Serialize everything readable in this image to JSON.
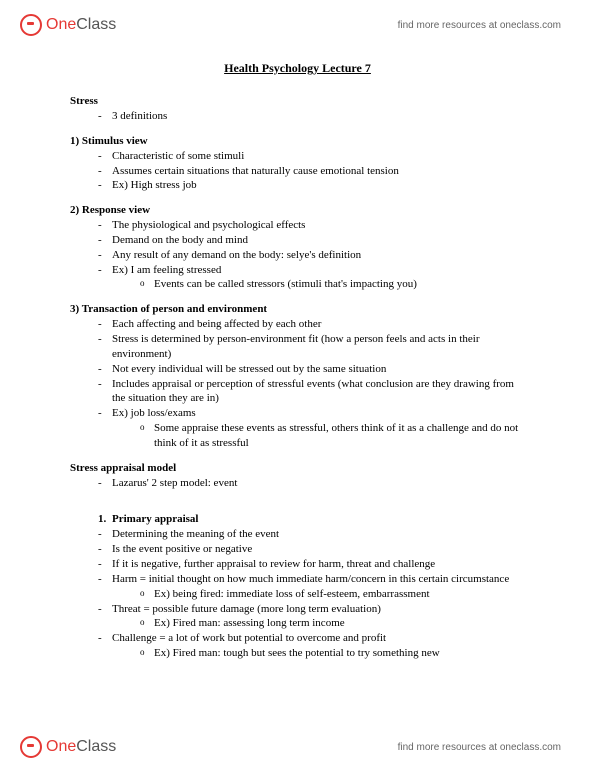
{
  "brand": {
    "one": "One",
    "class": "Class"
  },
  "headerLink": "find more resources at oneclass.com",
  "footerLink": "find more resources at oneclass.com",
  "title": "Health Psychology Lecture 7",
  "s1": {
    "head": "Stress",
    "b1": "3 definitions"
  },
  "s2": {
    "head": "1) Stimulus view",
    "b1": "Characteristic of some stimuli",
    "b2": "Assumes certain situations that naturally cause emotional tension",
    "b3": "Ex) High stress job"
  },
  "s3": {
    "head": "2) Response view",
    "b1": "The physiological and psychological effects",
    "b2": "Demand on the body and mind",
    "b3": "Any result of any demand on the body: selye's definition",
    "b4": "Ex) I am feeling stressed",
    "sub1": "Events can be called stressors (stimuli that's impacting you)"
  },
  "s4": {
    "head": "3) Transaction of person and environment",
    "b1": "Each affecting and being affected by each other",
    "b2": "Stress is determined by person-environment fit (how a person feels and acts in their environment)",
    "b3": "Not every individual will be stressed out by the same situation",
    "b4": "Includes appraisal or perception of stressful events (what conclusion are they drawing from the situation they are in)",
    "b5": "Ex) job loss/exams",
    "sub1": "Some appraise these events as stressful, others think of it as a challenge and do not think of it as stressful"
  },
  "s5": {
    "head": "Stress appraisal model",
    "b1": "Lazarus' 2 step model: event"
  },
  "s6": {
    "num": "1.",
    "head": "Primary appraisal",
    "b1": "Determining the meaning of the event",
    "b2": "Is the event positive or negative",
    "b3": "If it is negative, further appraisal to review for harm, threat and challenge",
    "b4": "Harm = initial thought on how much immediate harm/concern in this certain circumstance",
    "sub1": "Ex) being fired: immediate loss of self-esteem, embarrassment",
    "b5": "Threat = possible future damage (more long term evaluation)",
    "sub2": "Ex) Fired man: assessing long term income",
    "b6": "Challenge = a lot of work but potential to overcome and profit",
    "sub3": "Ex) Fired man: tough but sees the potential to try something new"
  }
}
